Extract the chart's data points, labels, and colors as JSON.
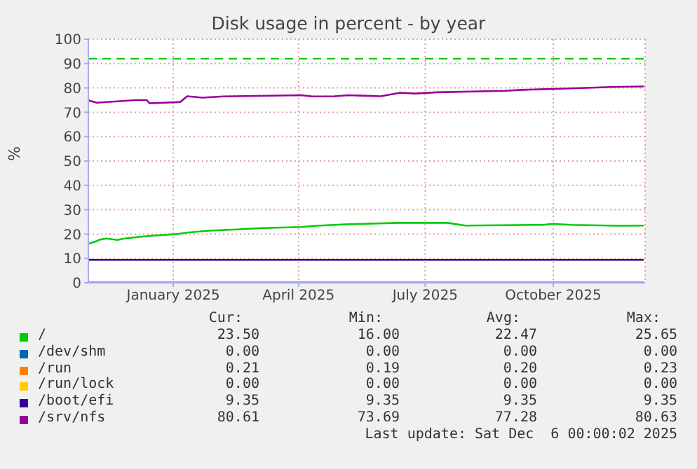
{
  "chart_data": {
    "type": "line",
    "title": "Disk usage in percent - by year",
    "ylabel": "%",
    "xlim": [
      "2024-11-01",
      "2025-12-06"
    ],
    "xticks": [
      {
        "value": "2025-01-01",
        "label": "January 2025"
      },
      {
        "value": "2025-04-01",
        "label": "April 2025"
      },
      {
        "value": "2025-07-01",
        "label": "July 2025"
      },
      {
        "value": "2025-10-01",
        "label": "October 2025"
      }
    ],
    "ylim": [
      0,
      100
    ],
    "yticks": [
      0,
      10,
      20,
      30,
      40,
      50,
      60,
      70,
      80,
      90,
      100
    ],
    "grid": true,
    "legend": "bottom",
    "marker": "none",
    "line_style": "solid",
    "ref_lines": [
      {
        "axis": "y",
        "value": 92,
        "color": "#00cc00",
        "line_style": "dashed"
      }
    ],
    "series": [
      {
        "name": "/",
        "color": "#00cc00",
        "x": [
          "2024-11-01",
          "2024-11-07",
          "2024-11-09",
          "2024-11-14",
          "2024-11-22",
          "2024-11-26",
          "2024-12-05",
          "2024-12-18",
          "2025-01-04",
          "2025-01-11",
          "2025-01-27",
          "2025-02-16",
          "2025-03-07",
          "2025-04-03",
          "2025-04-14",
          "2025-04-27",
          "2025-05-04",
          "2025-06-13",
          "2025-07-17",
          "2025-07-30",
          "2025-09-24",
          "2025-09-30",
          "2025-10-14",
          "2025-11-17",
          "2025-12-05"
        ],
        "values": [
          16.0,
          17.1,
          17.7,
          18.2,
          17.6,
          18.1,
          18.7,
          19.4,
          20.0,
          20.6,
          21.4,
          21.9,
          22.5,
          22.9,
          23.4,
          23.8,
          24.0,
          24.6,
          24.6,
          23.5,
          23.8,
          24.2,
          23.8,
          23.4,
          23.5
        ]
      },
      {
        "name": "/dev/shm",
        "color": "#0066b3"
      },
      {
        "name": "/run",
        "color": "#ff8000",
        "x": [
          "2024-11-01",
          "2025-12-05"
        ],
        "values": [
          0.2,
          0.2
        ]
      },
      {
        "name": "/run/lock",
        "color": "#ffcc00"
      },
      {
        "name": "/boot/efi",
        "color": "#330099",
        "x": [
          "2024-11-01",
          "2025-12-05"
        ],
        "values": [
          9.4,
          9.4
        ]
      },
      {
        "name": "/srv/nfs",
        "color": "#990099",
        "x": [
          "2024-11-01",
          "2024-11-07",
          "2024-12-05",
          "2024-12-13",
          "2024-12-15",
          "2025-01-06",
          "2025-01-11",
          "2025-01-22",
          "2025-02-06",
          "2025-04-03",
          "2025-04-11",
          "2025-04-27",
          "2025-05-07",
          "2025-05-30",
          "2025-06-13",
          "2025-06-24",
          "2025-07-09",
          "2025-08-27",
          "2025-09-09",
          "2025-10-14",
          "2025-11-12",
          "2025-12-05"
        ],
        "values": [
          74.9,
          73.9,
          75.0,
          75.0,
          73.7,
          74.2,
          76.6,
          76.0,
          76.5,
          77.0,
          76.5,
          76.6,
          77.0,
          76.6,
          78.0,
          77.7,
          78.2,
          78.8,
          79.2,
          79.8,
          80.4,
          80.6
        ]
      }
    ],
    "annotations": [
      "Cur:",
      "Min:",
      "Avg:",
      "Max:",
      "23.50",
      "16.00",
      "22.47",
      "25.65",
      "0.00",
      "0.00",
      "0.00",
      "0.00",
      "0.21",
      "0.19",
      "0.20",
      "0.23",
      "0.00",
      "0.00",
      "0.00",
      "0.00",
      "9.35",
      "9.35",
      "9.35",
      "9.35",
      "80.61",
      "73.69",
      "77.28",
      "80.63",
      "Last update: Sat Dec  6 00:00:02 2025"
    ]
  }
}
